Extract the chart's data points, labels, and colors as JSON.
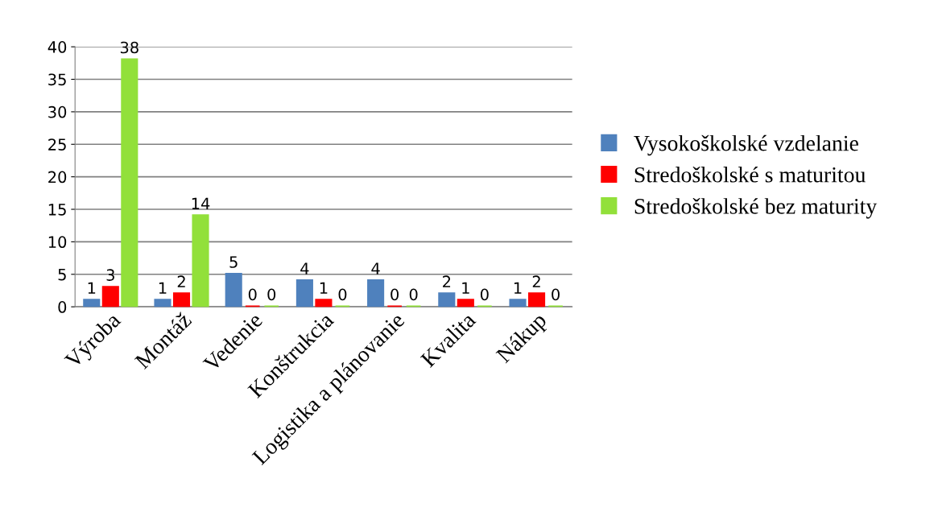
{
  "chart_data": {
    "type": "bar",
    "categories": [
      "Výroba",
      "Montáž",
      "Vedenie",
      "Konštrukcia",
      "Logistika a plánovanie",
      "Kvalita",
      "Nákup"
    ],
    "series": [
      {
        "name": "Vysokoškolské vzdelanie",
        "color": "#4f81bd",
        "values": [
          1,
          1,
          5,
          4,
          4,
          2,
          1
        ]
      },
      {
        "name": "Stredoškolské s maturitou",
        "color": "#ff0000",
        "values": [
          3,
          2,
          0,
          1,
          0,
          1,
          2
        ]
      },
      {
        "name": "Stredoškolské bez maturity",
        "color": "#92e03a",
        "values": [
          38,
          14,
          0,
          0,
          0,
          0,
          0
        ]
      }
    ],
    "ylim": [
      0,
      40
    ],
    "yticks": [
      0,
      5,
      10,
      15,
      20,
      25,
      30,
      35,
      40
    ],
    "grid": "y",
    "legend": "right",
    "data_labels": true
  }
}
